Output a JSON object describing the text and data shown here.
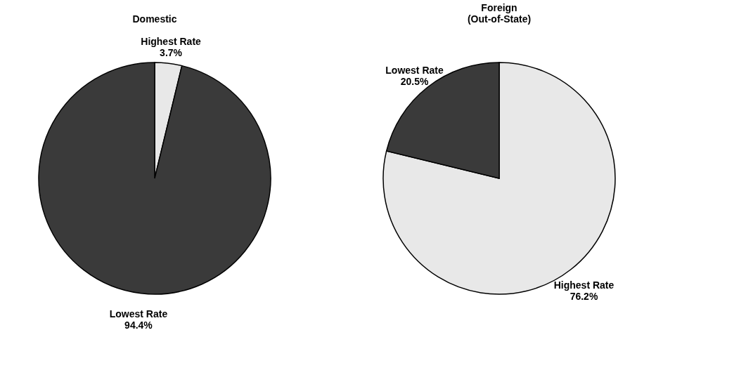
{
  "chart_data": [
    {
      "type": "pie",
      "title": "Domestic",
      "categories": [
        "Highest Rate",
        "Lowest Rate"
      ],
      "values": [
        3.7,
        94.4
      ],
      "colors": [
        "#e8e8e8",
        "#3a3a3a"
      ],
      "value_labels": [
        "3.7%",
        "94.4%"
      ],
      "legend": false
    },
    {
      "type": "pie",
      "title": "Foreign\n(Out-of-State)",
      "categories": [
        "Highest Rate",
        "Lowest Rate"
      ],
      "values": [
        76.2,
        20.5
      ],
      "colors": [
        "#e8e8e8",
        "#3a3a3a"
      ],
      "value_labels": [
        "76.2%",
        "20.5%"
      ],
      "legend": false
    }
  ]
}
